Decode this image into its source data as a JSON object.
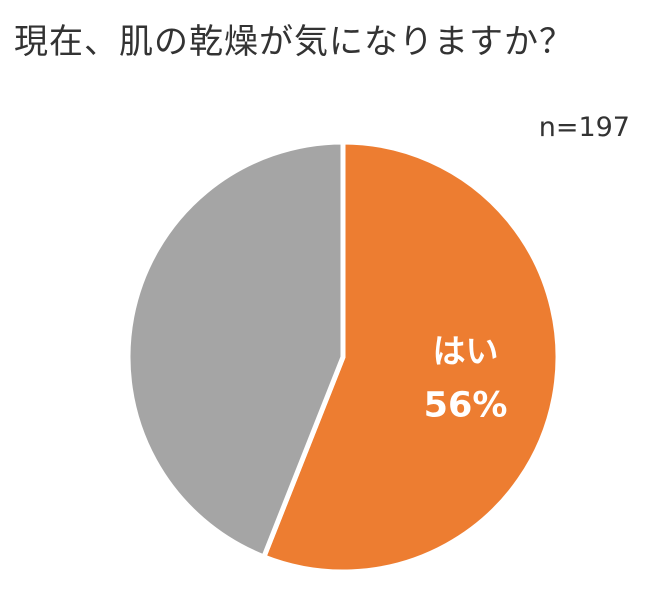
{
  "chart_data": {
    "type": "pie",
    "title": "現在、肌の乾燥が気になりますか？",
    "sample_size": "n=197",
    "slices": [
      {
        "label": "はい",
        "value": 56,
        "value_label": "56%",
        "color": "#ED7D31",
        "show_label": true
      },
      {
        "label": "",
        "value": 44,
        "value_label": "",
        "color": "#A5A5A5",
        "show_label": false
      }
    ],
    "start_angle_deg": 0,
    "direction": "clockwise"
  }
}
